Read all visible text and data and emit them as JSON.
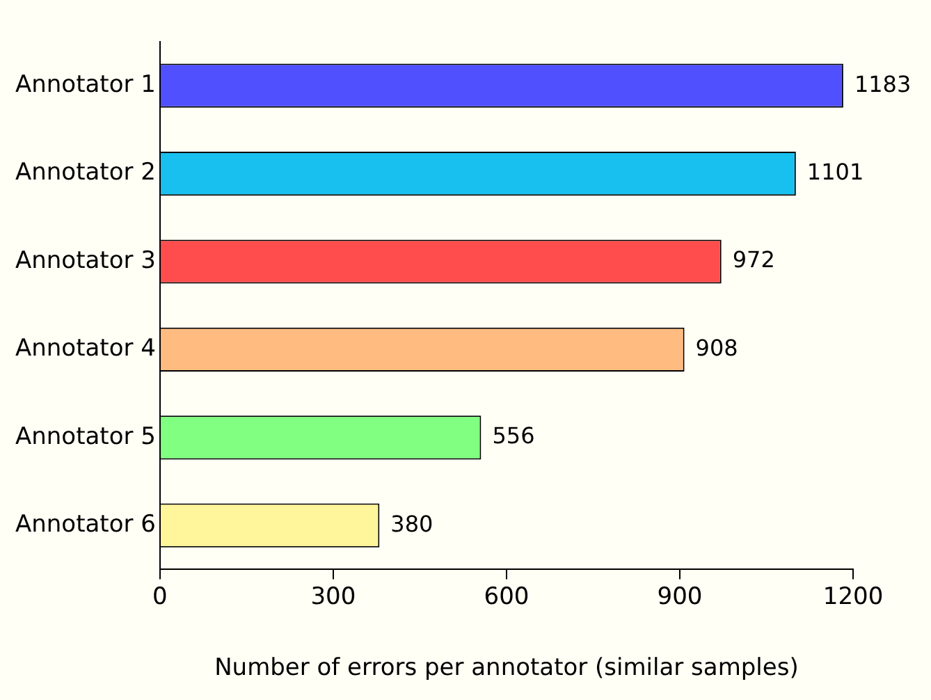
{
  "chart_data": {
    "type": "bar",
    "orientation": "horizontal",
    "xlabel": "Number of errors per annotator (similar samples)",
    "categories": [
      "Annotator 1",
      "Annotator 2",
      "Annotator 3",
      "Annotator 4",
      "Annotator 5",
      "Annotator 6"
    ],
    "values": [
      1183,
      1101,
      972,
      908,
      556,
      380
    ],
    "colors": [
      "#5050ff",
      "#18c0f0",
      "#ff4d4d",
      "#ffbb80",
      "#80ff80",
      "#fff59a"
    ],
    "xlim": [
      0,
      1200
    ],
    "xticks": [
      0,
      300,
      600,
      900,
      1200
    ],
    "data_labels": true,
    "grid": false,
    "legend": false
  }
}
